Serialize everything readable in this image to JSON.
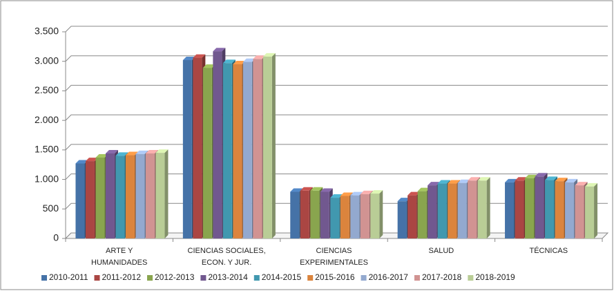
{
  "chart_data": {
    "type": "bar3d",
    "categories": [
      "ARTE Y HUMANIDADES",
      "CIENCIAS SOCIALES, ECON. Y JUR.",
      "CIENCIAS EXPERIMENTALES",
      "SALUD",
      "TÉCNICAS"
    ],
    "series": [
      {
        "name": "2010-2011",
        "color": "#4572A7",
        "values": [
          1270,
          3020,
          790,
          630,
          950
        ]
      },
      {
        "name": "2011-2012",
        "color": "#AA4643",
        "values": [
          1310,
          3060,
          810,
          730,
          980
        ]
      },
      {
        "name": "2012-2013",
        "color": "#89A54E",
        "values": [
          1370,
          2890,
          810,
          800,
          1020
        ]
      },
      {
        "name": "2013-2014",
        "color": "#71588F",
        "values": [
          1440,
          3170,
          790,
          900,
          1050
        ]
      },
      {
        "name": "2014-2015",
        "color": "#4198AF",
        "values": [
          1400,
          2970,
          690,
          930,
          990
        ]
      },
      {
        "name": "2015-2016",
        "color": "#DB843D",
        "values": [
          1410,
          2950,
          720,
          930,
          970
        ]
      },
      {
        "name": "2016-2017",
        "color": "#93A9CF",
        "values": [
          1430,
          2990,
          730,
          940,
          950
        ]
      },
      {
        "name": "2017-2018",
        "color": "#D19392",
        "values": [
          1440,
          3040,
          750,
          980,
          900
        ]
      },
      {
        "name": "2018-2019",
        "color": "#B9CD96",
        "values": [
          1450,
          3080,
          760,
          980,
          880
        ]
      }
    ],
    "ylim": [
      0,
      3500
    ],
    "yticks": [
      0,
      500,
      {
        "value": 1000,
        "label": "1.000"
      },
      {
        "value": 1500,
        "label": "1.500"
      },
      {
        "value": 2000,
        "label": "2.000"
      },
      {
        "value": 2500,
        "label": "2.500"
      },
      {
        "value": 3000,
        "label": "3.000"
      },
      {
        "value": 3500,
        "label": "3.500"
      }
    ],
    "grid": true,
    "legend": "bottom"
  }
}
